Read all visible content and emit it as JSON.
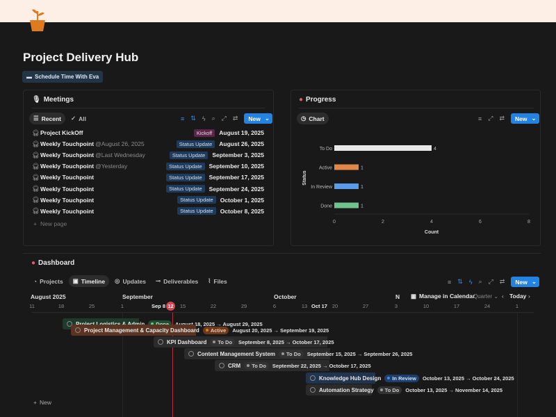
{
  "page": {
    "title": "Project Delivery Hub",
    "schedule_button": "Schedule Time With Eva"
  },
  "meetings": {
    "title": "Meetings",
    "tabs": [
      "Recent",
      "All"
    ],
    "new_label": "New",
    "new_page": "New page",
    "rows": [
      {
        "title": "Project KickOff",
        "mention": "",
        "tag": "Kickoff",
        "date": "August 19, 2025"
      },
      {
        "title": "Weekly Touchpoint",
        "mention": "@August 26, 2025",
        "tag": "Status Update",
        "date": "August 26, 2025"
      },
      {
        "title": "Weekly Touchpoint",
        "mention": "@Last Wednesday",
        "tag": "Status Update",
        "date": "September 3, 2025"
      },
      {
        "title": "Weekly Touchpoint",
        "mention": "@Yesterday",
        "tag": "Status Update",
        "date": "September 10, 2025"
      },
      {
        "title": "Weekly Touchpoint",
        "mention": "",
        "tag": "Status Update",
        "date": "September 17, 2025"
      },
      {
        "title": "Weekly Touchpoint",
        "mention": "",
        "tag": "Status Update",
        "date": "September 24, 2025"
      },
      {
        "title": "Weekly Touchpoint",
        "mention": "",
        "tag": "Status Update",
        "date": "October 1, 2025"
      },
      {
        "title": "Weekly Touchpoint",
        "mention": "",
        "tag": "Status Update",
        "date": "October 8, 2025"
      }
    ]
  },
  "progress": {
    "title": "Progress",
    "tab": "Chart",
    "new_label": "New"
  },
  "chart_data": {
    "type": "bar",
    "orientation": "horizontal",
    "categories": [
      "To Do",
      "Active",
      "In Review",
      "Done"
    ],
    "values": [
      4,
      1,
      1,
      1
    ],
    "colors": [
      "#e8e8e8",
      "#e0884a",
      "#5a9ae8",
      "#6fc48e"
    ],
    "xlabel": "Count",
    "ylabel": "Status",
    "xlim": [
      0,
      8
    ],
    "xticks": [
      0,
      2,
      4,
      6,
      8
    ]
  },
  "dashboard": {
    "title": "Dashboard",
    "tabs": [
      "Projects",
      "Timeline",
      "Updates",
      "Deliverables",
      "Files"
    ],
    "new_label": "New",
    "manage": "Manage in Calendar",
    "range": "Quarter",
    "today": "Today",
    "add_new": "New",
    "months": [
      "August 2025",
      "September",
      "October",
      "N"
    ],
    "ticks": [
      "11",
      "18",
      "25",
      "1",
      "Sep 8",
      "15",
      "22",
      "29",
      "6",
      "13",
      "Oct 17",
      "20",
      "27",
      "3",
      "10",
      "17",
      "24",
      "1"
    ],
    "today_badge": "12",
    "items": [
      {
        "name": "Project Logistics & Admin",
        "status": "Done",
        "dates": "August 18, 2025 → August 29, 2025"
      },
      {
        "name": "Project Management & Capacity Dashboard",
        "status": "Active",
        "dates": "August 20, 2025 → September 19, 2025"
      },
      {
        "name": "KPI Dashboard",
        "status": "To Do",
        "dates": "September 8, 2025 → October 17, 2025"
      },
      {
        "name": "Content Management System",
        "status": "To Do",
        "dates": "September 15, 2025 → September 26, 2025"
      },
      {
        "name": "CRM",
        "status": "To Do",
        "dates": "September 22, 2025 → October 17, 2025"
      },
      {
        "name": "Knowledge Hub Design",
        "status": "In Review",
        "dates": "October 13, 2025 → October 24, 2025"
      },
      {
        "name": "Automation Strategy",
        "status": "To Do",
        "dates": "October 13, 2025 → November 14, 2025"
      }
    ]
  }
}
